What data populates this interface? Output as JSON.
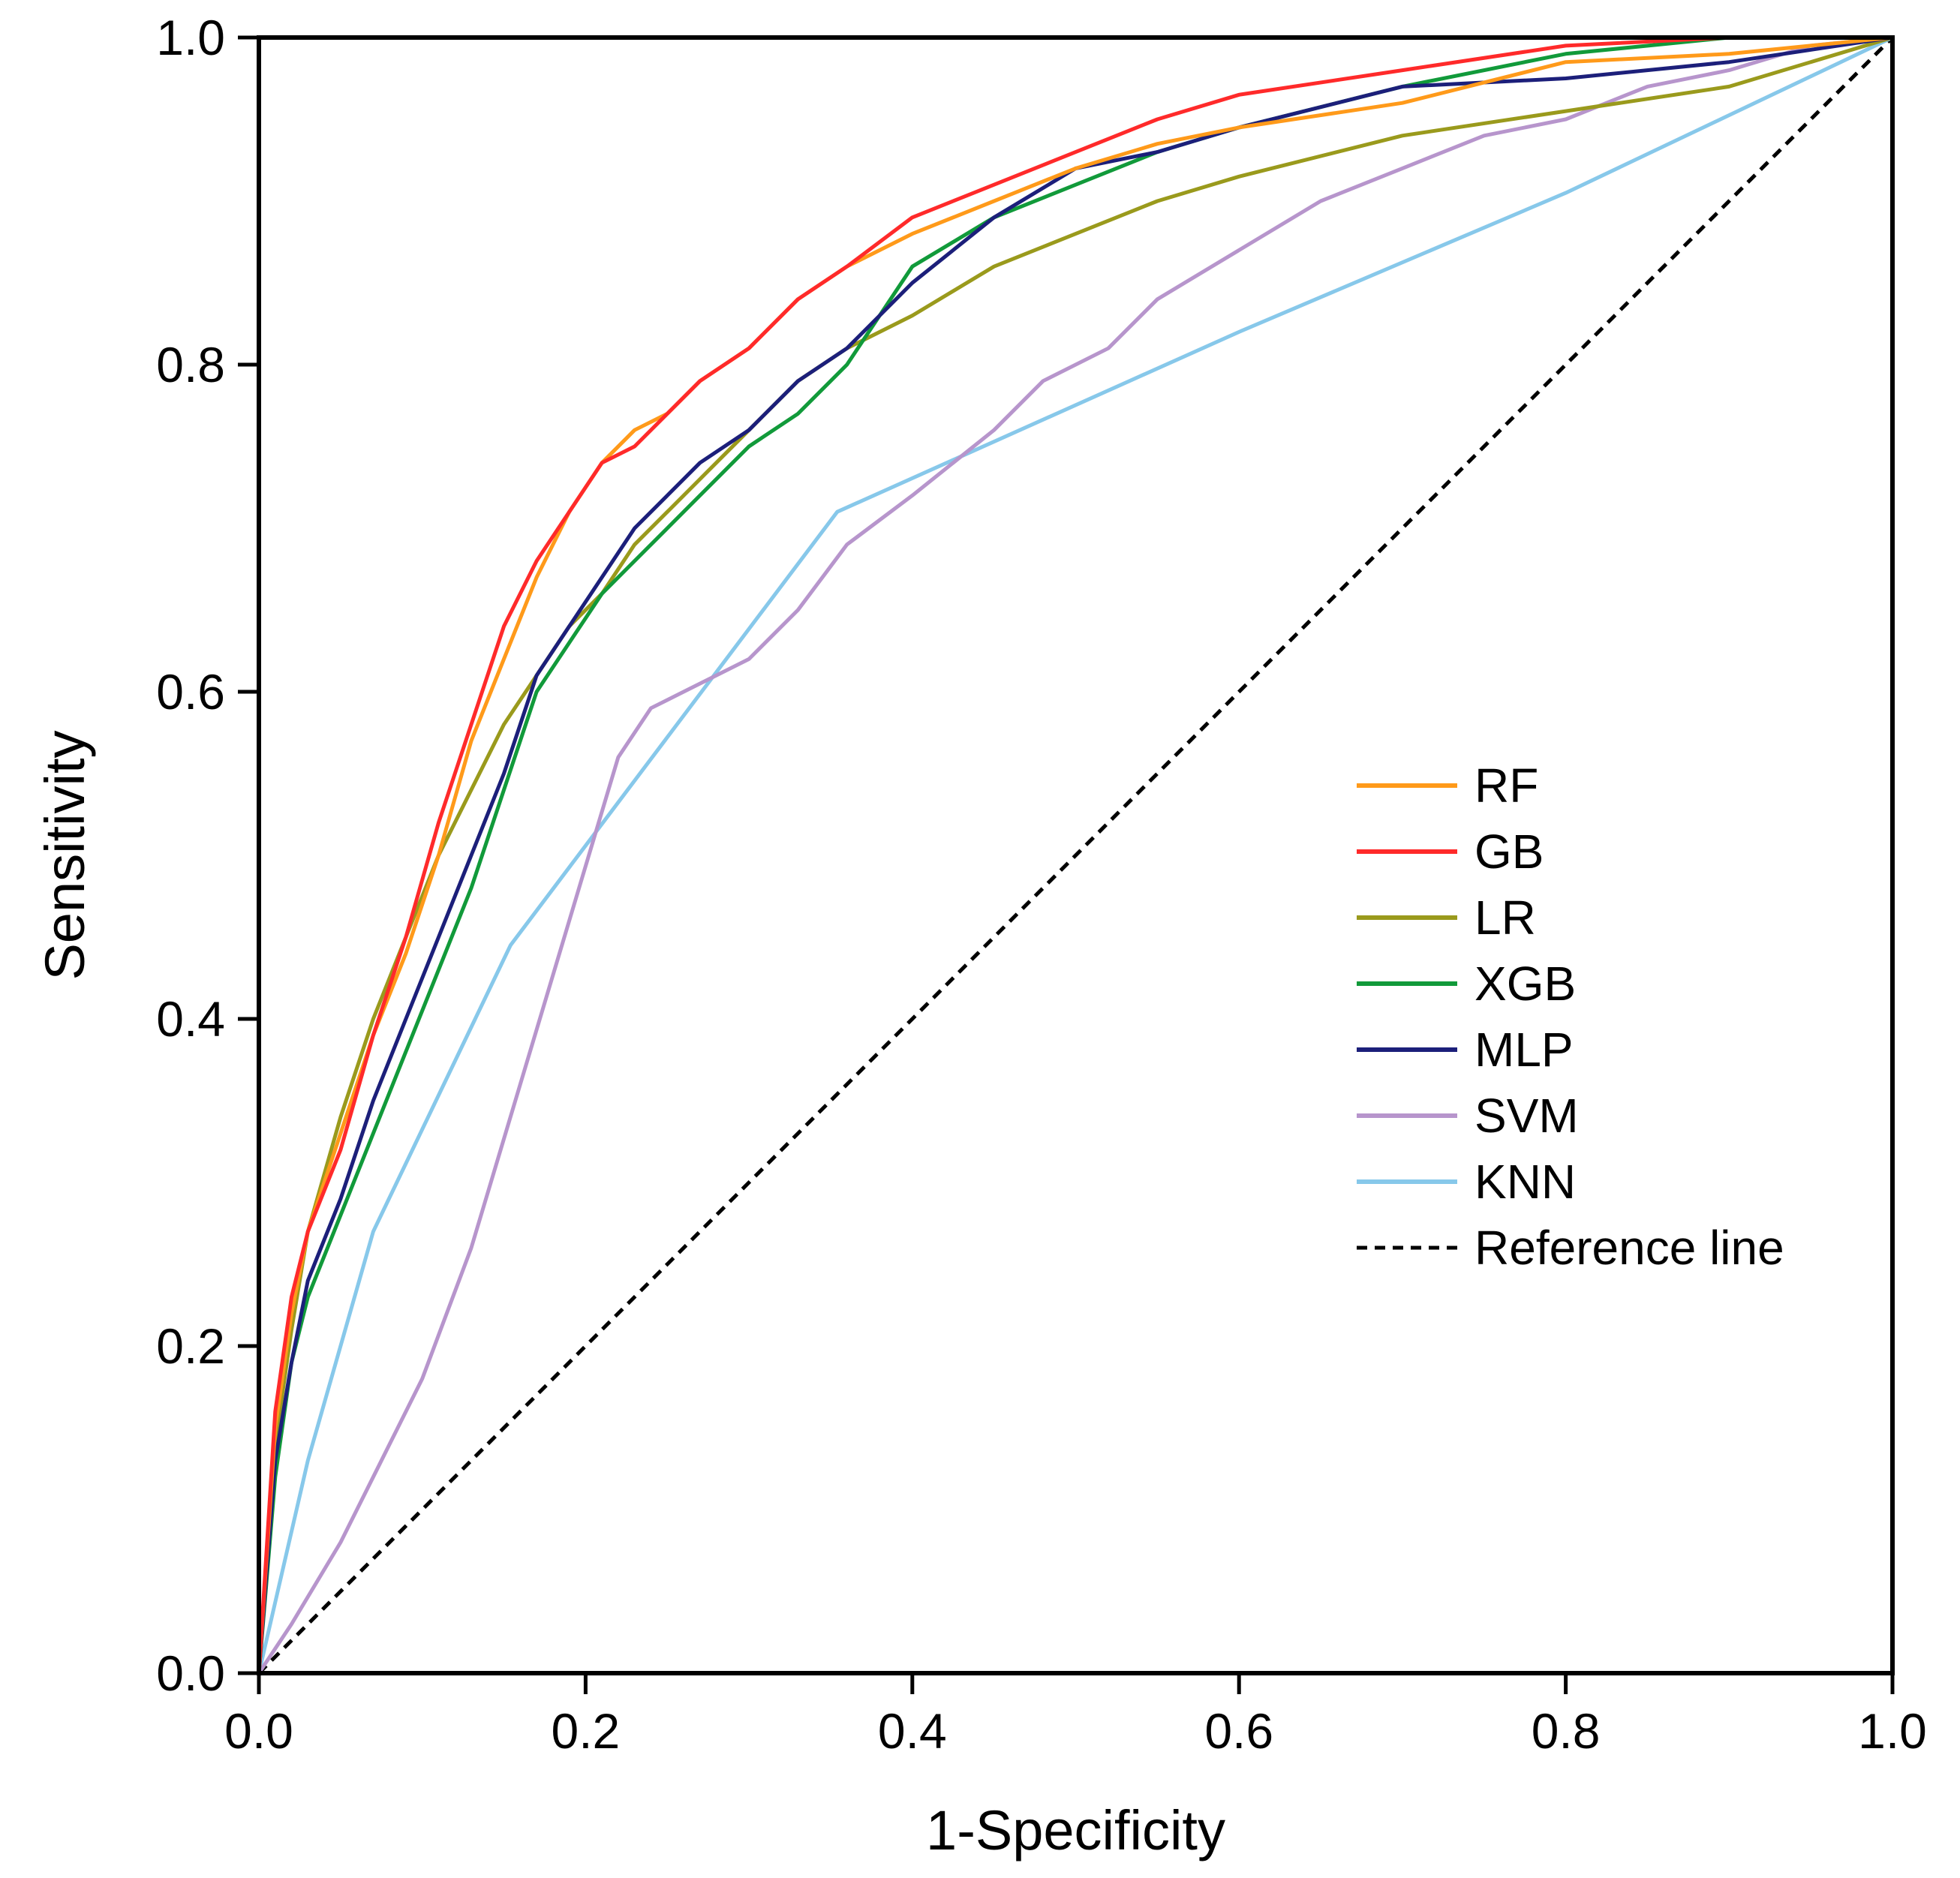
{
  "chart_data": {
    "type": "line",
    "xlabel": "1-Specificity",
    "ylabel": "Sensitivity",
    "xlim": [
      0,
      1
    ],
    "ylim": [
      0,
      1
    ],
    "xticks": [
      "0.0",
      "0.2",
      "0.4",
      "0.6",
      "0.8",
      "1.0"
    ],
    "yticks": [
      "0.0",
      "0.2",
      "0.4",
      "0.6",
      "0.8",
      "1.0"
    ],
    "grid": false,
    "legend_position": "center-right",
    "series": [
      {
        "name": "RF",
        "color": "#ff9a1a",
        "x": [
          0,
          0.01,
          0.02,
          0.03,
          0.05,
          0.07,
          0.09,
          0.11,
          0.13,
          0.15,
          0.17,
          0.19,
          0.21,
          0.23,
          0.25,
          0.27,
          0.3,
          0.33,
          0.36,
          0.4,
          0.45,
          0.5,
          0.55,
          0.6,
          0.7,
          0.8,
          0.9,
          1.0
        ],
        "y": [
          0,
          0.15,
          0.22,
          0.27,
          0.33,
          0.39,
          0.44,
          0.5,
          0.57,
          0.62,
          0.67,
          0.71,
          0.74,
          0.76,
          0.77,
          0.79,
          0.81,
          0.84,
          0.86,
          0.88,
          0.9,
          0.92,
          0.935,
          0.945,
          0.96,
          0.985,
          0.99,
          1.0
        ]
      },
      {
        "name": "GB",
        "color": "#ff2a2a",
        "x": [
          0,
          0.01,
          0.02,
          0.03,
          0.05,
          0.07,
          0.09,
          0.11,
          0.13,
          0.15,
          0.17,
          0.19,
          0.21,
          0.23,
          0.25,
          0.27,
          0.3,
          0.33,
          0.36,
          0.4,
          0.45,
          0.5,
          0.55,
          0.6,
          0.7,
          0.8,
          0.9,
          1.0
        ],
        "y": [
          0,
          0.16,
          0.23,
          0.27,
          0.32,
          0.39,
          0.45,
          0.52,
          0.58,
          0.64,
          0.68,
          0.71,
          0.74,
          0.75,
          0.77,
          0.79,
          0.81,
          0.84,
          0.86,
          0.89,
          0.91,
          0.93,
          0.95,
          0.965,
          0.98,
          0.995,
          1.0,
          1.0
        ]
      },
      {
        "name": "LR",
        "color": "#9a9a1c",
        "x": [
          0,
          0.01,
          0.02,
          0.03,
          0.05,
          0.07,
          0.09,
          0.11,
          0.13,
          0.15,
          0.17,
          0.19,
          0.21,
          0.23,
          0.25,
          0.27,
          0.3,
          0.33,
          0.36,
          0.4,
          0.45,
          0.5,
          0.55,
          0.6,
          0.7,
          0.8,
          0.9,
          1.0
        ],
        "y": [
          0,
          0.14,
          0.21,
          0.27,
          0.34,
          0.4,
          0.45,
          0.5,
          0.54,
          0.58,
          0.61,
          0.64,
          0.66,
          0.69,
          0.71,
          0.73,
          0.76,
          0.79,
          0.81,
          0.83,
          0.86,
          0.88,
          0.9,
          0.915,
          0.94,
          0.955,
          0.97,
          1.0
        ]
      },
      {
        "name": "XGB",
        "color": "#119a3a",
        "x": [
          0,
          0.01,
          0.02,
          0.03,
          0.05,
          0.07,
          0.09,
          0.11,
          0.13,
          0.15,
          0.17,
          0.19,
          0.21,
          0.23,
          0.25,
          0.27,
          0.3,
          0.33,
          0.36,
          0.4,
          0.45,
          0.5,
          0.55,
          0.6,
          0.7,
          0.8,
          0.9,
          1.0
        ],
        "y": [
          0,
          0.12,
          0.19,
          0.23,
          0.28,
          0.33,
          0.38,
          0.43,
          0.48,
          0.54,
          0.6,
          0.63,
          0.66,
          0.68,
          0.7,
          0.72,
          0.75,
          0.77,
          0.8,
          0.86,
          0.89,
          0.91,
          0.93,
          0.945,
          0.97,
          0.99,
          1.0,
          1.0
        ]
      },
      {
        "name": "MLP",
        "color": "#1c1f7a",
        "x": [
          0,
          0.01,
          0.02,
          0.03,
          0.05,
          0.07,
          0.09,
          0.11,
          0.13,
          0.15,
          0.17,
          0.19,
          0.21,
          0.23,
          0.25,
          0.27,
          0.3,
          0.33,
          0.36,
          0.4,
          0.45,
          0.5,
          0.55,
          0.6,
          0.7,
          0.8,
          0.9,
          1.0
        ],
        "y": [
          0,
          0.13,
          0.19,
          0.24,
          0.29,
          0.35,
          0.4,
          0.45,
          0.5,
          0.55,
          0.61,
          0.64,
          0.67,
          0.7,
          0.72,
          0.74,
          0.76,
          0.79,
          0.81,
          0.85,
          0.89,
          0.92,
          0.93,
          0.945,
          0.97,
          0.975,
          0.985,
          1.0
        ]
      },
      {
        "name": "SVM",
        "color": "#b795cc",
        "x": [
          0,
          0.02,
          0.05,
          0.08,
          0.1,
          0.13,
          0.16,
          0.19,
          0.22,
          0.24,
          0.26,
          0.3,
          0.33,
          0.36,
          0.4,
          0.45,
          0.48,
          0.52,
          0.55,
          0.6,
          0.65,
          0.7,
          0.75,
          0.8,
          0.85,
          0.9,
          0.95,
          1.0
        ],
        "y": [
          0,
          0.03,
          0.08,
          0.14,
          0.18,
          0.26,
          0.36,
          0.46,
          0.56,
          0.59,
          0.6,
          0.62,
          0.65,
          0.69,
          0.72,
          0.76,
          0.79,
          0.81,
          0.84,
          0.87,
          0.9,
          0.92,
          0.94,
          0.95,
          0.97,
          0.98,
          0.995,
          1.0
        ]
      },
      {
        "name": "KNN",
        "color": "#87c8ea",
        "x": [
          0,
          0.03,
          0.07,
          0.154,
          0.354,
          0.6,
          0.8,
          1.0
        ],
        "y": [
          0,
          0.13,
          0.27,
          0.445,
          0.71,
          0.82,
          0.905,
          1.0
        ]
      }
    ],
    "reference": {
      "name": "Reference line",
      "color": "#000000",
      "x": [
        0,
        1
      ],
      "y": [
        0,
        1
      ]
    }
  }
}
